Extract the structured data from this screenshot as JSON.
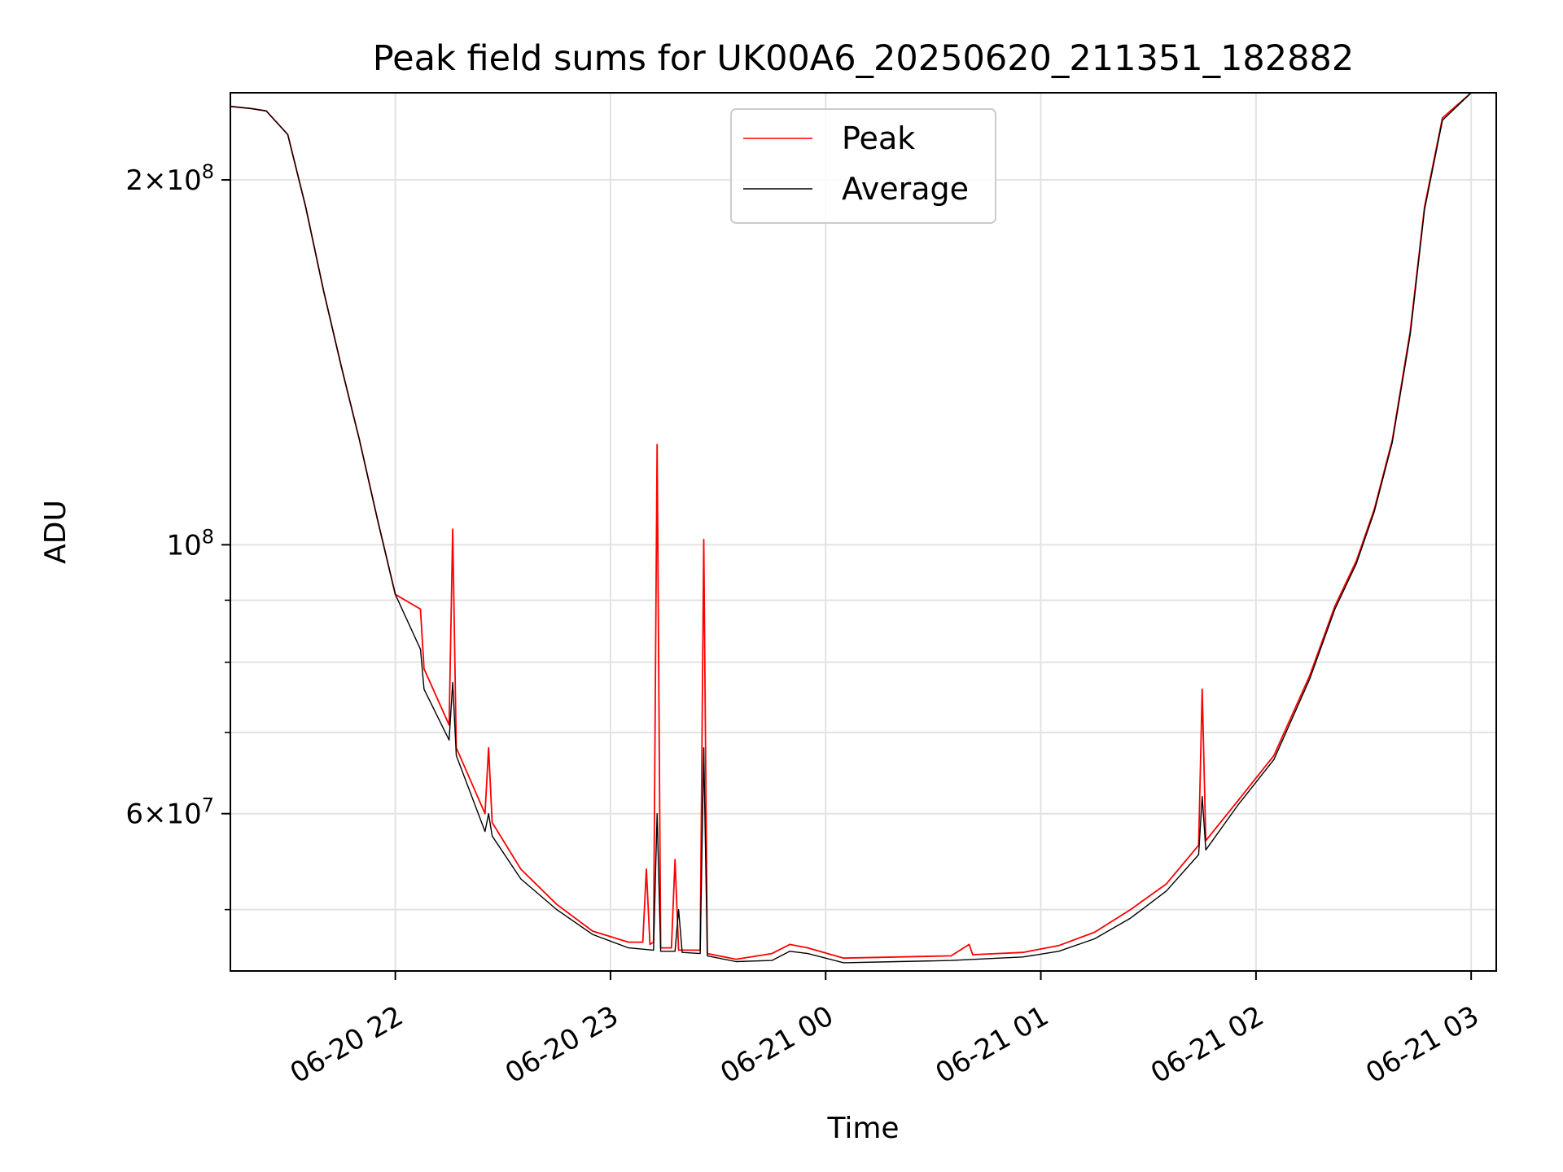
{
  "chart_data": {
    "type": "line",
    "title": "Peak field sums for UK00A6_20250620_211351_182882",
    "xlabel": "Time",
    "ylabel": "ADU",
    "y_scale": "log",
    "ylim": [
      44500000,
      236000000
    ],
    "xlim": [
      "06-20 21:14",
      "06-21 03:07"
    ],
    "grid": true,
    "legend_placement": "upper center",
    "x_ticks": [
      "06-20 22",
      "06-20 23",
      "06-21 00",
      "06-21 01",
      "06-21 02",
      "06-21 03"
    ],
    "y_ticks_major": [
      "2×10^8",
      "10^8",
      "6×10^7"
    ],
    "series": [
      {
        "name": "Peak",
        "color": "#ff0000",
        "points": [
          [
            "06-20 21:14",
            230000000
          ],
          [
            "06-20 21:20",
            229000000
          ],
          [
            "06-20 21:24",
            228000000
          ],
          [
            "06-20 21:30",
            218000000
          ],
          [
            "06-20 21:35",
            190000000
          ],
          [
            "06-20 21:40",
            162000000
          ],
          [
            "06-20 21:45",
            140000000
          ],
          [
            "06-20 21:50",
            122000000
          ],
          [
            "06-20 21:55",
            105000000
          ],
          [
            "06-20 22:00",
            91000000
          ],
          [
            "06-20 22:07",
            88500000
          ],
          [
            "06-20 22:08",
            79000000
          ],
          [
            "06-20 22:15",
            71000000
          ],
          [
            "06-20 22:16",
            103000000
          ],
          [
            "06-20 22:17",
            68000000
          ],
          [
            "06-20 22:25",
            60000000
          ],
          [
            "06-20 22:26",
            68000000
          ],
          [
            "06-20 22:27",
            59000000
          ],
          [
            "06-20 22:35",
            54000000
          ],
          [
            "06-20 22:45",
            50500000
          ],
          [
            "06-20 22:55",
            48000000
          ],
          [
            "06-20 23:05",
            47000000
          ],
          [
            "06-20 23:09",
            47000000
          ],
          [
            "06-20 23:10",
            54000000
          ],
          [
            "06-20 23:11",
            46800000
          ],
          [
            "06-20 23:12",
            47000000
          ],
          [
            "06-20 23:13",
            121000000
          ],
          [
            "06-20 23:14",
            46500000
          ],
          [
            "06-20 23:17",
            46500000
          ],
          [
            "06-20 23:18",
            55000000
          ],
          [
            "06-20 23:19",
            46300000
          ],
          [
            "06-20 23:25",
            46300000
          ],
          [
            "06-20 23:26",
            101000000
          ],
          [
            "06-20 23:27",
            46000000
          ],
          [
            "06-20 23:35",
            45500000
          ],
          [
            "06-20 23:45",
            46000000
          ],
          [
            "06-20 23:50",
            46800000
          ],
          [
            "06-20 23:55",
            46500000
          ],
          [
            "06-21 00:05",
            45600000
          ],
          [
            "06-21 00:20",
            45700000
          ],
          [
            "06-21 00:35",
            45800000
          ],
          [
            "06-21 00:40",
            46800000
          ],
          [
            "06-21 00:41",
            45900000
          ],
          [
            "06-21 00:55",
            46100000
          ],
          [
            "06-21 01:05",
            46700000
          ],
          [
            "06-21 01:15",
            47900000
          ],
          [
            "06-21 01:25",
            50000000
          ],
          [
            "06-21 01:35",
            52500000
          ],
          [
            "06-21 01:44",
            56500000
          ],
          [
            "06-21 01:45",
            76000000
          ],
          [
            "06-21 01:46",
            57000000
          ],
          [
            "06-21 01:55",
            61500000
          ],
          [
            "06-21 02:05",
            67000000
          ],
          [
            "06-21 02:15",
            78000000
          ],
          [
            "06-21 02:22",
            89000000
          ],
          [
            "06-21 02:28",
            97000000
          ],
          [
            "06-21 02:33",
            107000000
          ],
          [
            "06-21 02:38",
            122000000
          ],
          [
            "06-21 02:43",
            150000000
          ],
          [
            "06-21 02:47",
            190000000
          ],
          [
            "06-21 02:52",
            225000000
          ],
          [
            "06-21 03:00",
            236000000
          ],
          [
            "06-21 03:07",
            236000000
          ]
        ]
      },
      {
        "name": "Average",
        "color": "#000000",
        "points": [
          [
            "06-20 21:14",
            230000000
          ],
          [
            "06-20 21:20",
            229000000
          ],
          [
            "06-20 21:24",
            228000000
          ],
          [
            "06-20 21:30",
            218000000
          ],
          [
            "06-20 21:35",
            190000000
          ],
          [
            "06-20 21:40",
            162000000
          ],
          [
            "06-20 21:45",
            140000000
          ],
          [
            "06-20 21:50",
            122000000
          ],
          [
            "06-20 21:55",
            105000000
          ],
          [
            "06-20 22:00",
            91000000
          ],
          [
            "06-20 22:07",
            82000000
          ],
          [
            "06-20 22:08",
            76000000
          ],
          [
            "06-20 22:15",
            69000000
          ],
          [
            "06-20 22:16",
            77000000
          ],
          [
            "06-20 22:17",
            67000000
          ],
          [
            "06-20 22:25",
            58000000
          ],
          [
            "06-20 22:26",
            60000000
          ],
          [
            "06-20 22:27",
            57500000
          ],
          [
            "06-20 22:35",
            53000000
          ],
          [
            "06-20 22:45",
            50000000
          ],
          [
            "06-20 22:55",
            47700000
          ],
          [
            "06-20 23:05",
            46500000
          ],
          [
            "06-20 23:12",
            46300000
          ],
          [
            "06-20 23:13",
            60000000
          ],
          [
            "06-20 23:14",
            46200000
          ],
          [
            "06-20 23:18",
            46200000
          ],
          [
            "06-20 23:19",
            50000000
          ],
          [
            "06-20 23:20",
            46100000
          ],
          [
            "06-20 23:25",
            46000000
          ],
          [
            "06-20 23:26",
            68000000
          ],
          [
            "06-20 23:27",
            45800000
          ],
          [
            "06-20 23:35",
            45300000
          ],
          [
            "06-20 23:45",
            45400000
          ],
          [
            "06-20 23:50",
            46200000
          ],
          [
            "06-20 23:55",
            46000000
          ],
          [
            "06-21 00:05",
            45200000
          ],
          [
            "06-21 00:20",
            45300000
          ],
          [
            "06-21 00:35",
            45400000
          ],
          [
            "06-21 00:55",
            45700000
          ],
          [
            "06-21 01:05",
            46200000
          ],
          [
            "06-21 01:15",
            47300000
          ],
          [
            "06-21 01:25",
            49200000
          ],
          [
            "06-21 01:35",
            51800000
          ],
          [
            "06-21 01:44",
            55500000
          ],
          [
            "06-21 01:45",
            62000000
          ],
          [
            "06-21 01:46",
            56000000
          ],
          [
            "06-21 01:55",
            61000000
          ],
          [
            "06-21 02:05",
            66500000
          ],
          [
            "06-21 02:15",
            77500000
          ],
          [
            "06-21 02:22",
            88500000
          ],
          [
            "06-21 02:28",
            96500000
          ],
          [
            "06-21 02:33",
            106500000
          ],
          [
            "06-21 02:38",
            121500000
          ],
          [
            "06-21 02:43",
            149000000
          ],
          [
            "06-21 02:47",
            189000000
          ],
          [
            "06-21 02:52",
            224000000
          ],
          [
            "06-21 03:00",
            236000000
          ],
          [
            "06-21 03:07",
            236000000
          ]
        ]
      }
    ]
  }
}
